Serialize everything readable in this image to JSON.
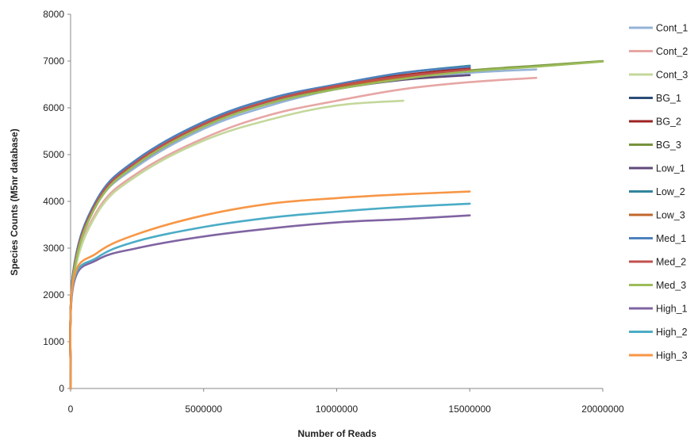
{
  "chart_data": {
    "type": "line",
    "title": "",
    "xlabel": "Number of Reads",
    "ylabel": "Species Counts (M5nr database)",
    "xlim": [
      0,
      20000000
    ],
    "ylim": [
      0,
      8000
    ],
    "xticks": [
      "0",
      "5000000",
      "10000000",
      "15000000",
      "20000000"
    ],
    "yticks": [
      "0",
      "1000",
      "2000",
      "3000",
      "4000",
      "5000",
      "6000",
      "7000",
      "8000"
    ],
    "grid": false,
    "legend_position": "right",
    "x": [
      0,
      100000,
      1000000,
      2500000,
      5000000,
      7500000,
      10000000,
      12500000,
      15000000,
      17500000,
      20000000
    ],
    "series": [
      {
        "name": "Cont_1",
        "color": "#95b3d7",
        "values": [
          0,
          2400,
          3950,
          4750,
          5550,
          6050,
          6400,
          6600,
          6750,
          6820,
          null
        ]
      },
      {
        "name": "Cont_2",
        "color": "#e6a6a4",
        "values": [
          0,
          2350,
          3800,
          4600,
          5350,
          5850,
          6150,
          6400,
          6550,
          6640,
          null
        ]
      },
      {
        "name": "Cont_3",
        "color": "#c4d89b",
        "values": [
          0,
          2300,
          3750,
          4550,
          5300,
          5750,
          6050,
          6150,
          null,
          null,
          null
        ]
      },
      {
        "name": "BG_1",
        "color": "#2c4d75",
        "values": [
          0,
          2450,
          4050,
          4850,
          5650,
          6150,
          6450,
          6650,
          6780,
          null,
          null
        ]
      },
      {
        "name": "BG_2",
        "color": "#9b2321",
        "values": [
          0,
          2450,
          4000,
          4850,
          5650,
          6150,
          6480,
          6700,
          6850,
          null,
          null
        ]
      },
      {
        "name": "BG_3",
        "color": "#77933c",
        "values": [
          0,
          2400,
          3950,
          4800,
          5600,
          6100,
          6420,
          6650,
          6800,
          6900,
          7000
        ]
      },
      {
        "name": "Low_1",
        "color": "#604a7b",
        "values": [
          0,
          2450,
          4000,
          4800,
          5600,
          6100,
          6400,
          6600,
          6700,
          null,
          null
        ]
      },
      {
        "name": "Low_2",
        "color": "#31859c",
        "values": [
          0,
          2500,
          4050,
          4900,
          5700,
          6200,
          6500,
          6750,
          6900,
          null,
          null
        ]
      },
      {
        "name": "Low_3",
        "color": "#c0672c",
        "values": [
          0,
          2450,
          4000,
          4850,
          5650,
          6150,
          6450,
          6650,
          6800,
          null,
          null
        ]
      },
      {
        "name": "Med_1",
        "color": "#4f81bd",
        "values": [
          0,
          2500,
          4050,
          4900,
          5700,
          6200,
          6500,
          6750,
          6880,
          null,
          null
        ]
      },
      {
        "name": "Med_2",
        "color": "#c0504d",
        "values": [
          0,
          2450,
          4000,
          4850,
          5650,
          6150,
          6470,
          6680,
          6820,
          null,
          null
        ]
      },
      {
        "name": "Med_3",
        "color": "#9bbb59",
        "values": [
          0,
          2400,
          3950,
          4800,
          5600,
          6100,
          6400,
          6620,
          6780,
          6880,
          6990
        ]
      },
      {
        "name": "High_1",
        "color": "#8064a2",
        "values": [
          0,
          2200,
          2750,
          3000,
          3250,
          3420,
          3550,
          3620,
          3700,
          null,
          null
        ]
      },
      {
        "name": "High_2",
        "color": "#4bacc6",
        "values": [
          0,
          2250,
          2800,
          3150,
          3450,
          3650,
          3780,
          3880,
          3950,
          null,
          null
        ]
      },
      {
        "name": "High_3",
        "color": "#f79646",
        "values": [
          0,
          2300,
          2900,
          3300,
          3700,
          3950,
          4070,
          4150,
          4210,
          null,
          null
        ]
      }
    ]
  }
}
